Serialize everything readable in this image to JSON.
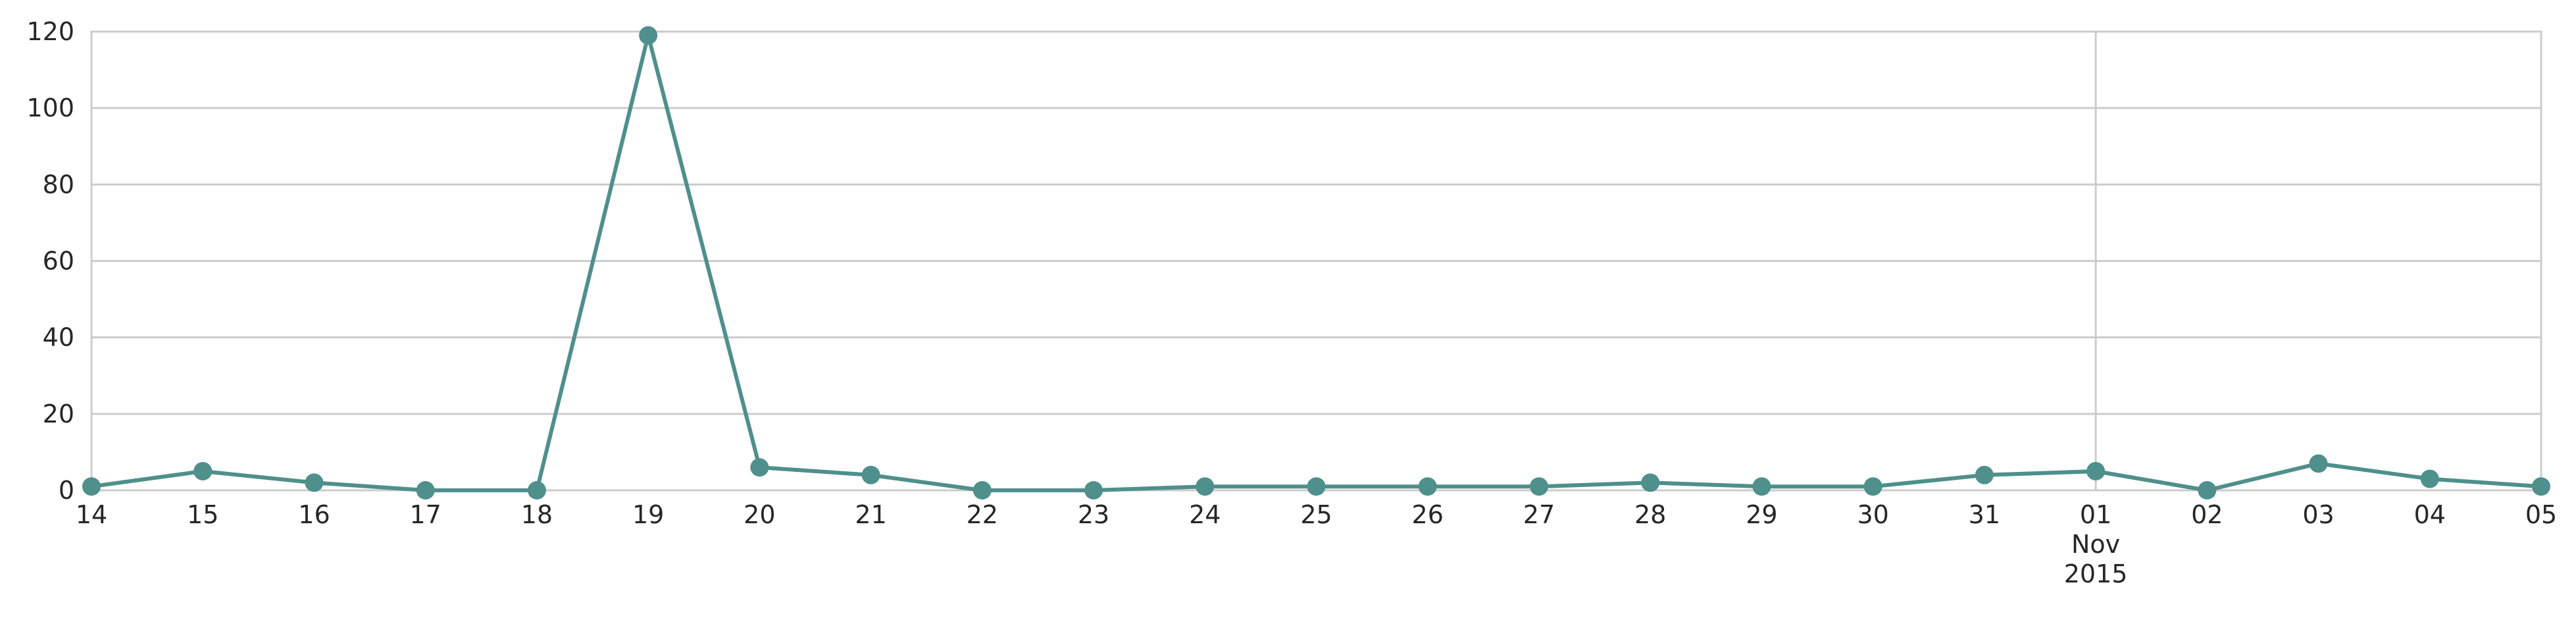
{
  "chart_data": {
    "type": "line",
    "title": "",
    "xlabel": "",
    "ylabel": "",
    "ylim": [
      0,
      120
    ],
    "yticks": [
      "0",
      "20",
      "40",
      "60",
      "80",
      "100",
      "120"
    ],
    "grid": true,
    "x_tick_labels": [
      {
        "day": "14"
      },
      {
        "day": "15"
      },
      {
        "day": "16"
      },
      {
        "day": "17"
      },
      {
        "day": "18"
      },
      {
        "day": "19"
      },
      {
        "day": "20"
      },
      {
        "day": "21"
      },
      {
        "day": "22"
      },
      {
        "day": "23"
      },
      {
        "day": "24"
      },
      {
        "day": "25"
      },
      {
        "day": "26"
      },
      {
        "day": "27"
      },
      {
        "day": "28"
      },
      {
        "day": "29"
      },
      {
        "day": "30"
      },
      {
        "day": "31"
      },
      {
        "day": "01",
        "month": "Nov",
        "year": "2015"
      },
      {
        "day": "02"
      },
      {
        "day": "03"
      },
      {
        "day": "04"
      },
      {
        "day": "05"
      }
    ],
    "series": [
      {
        "color": "#4f8f8c",
        "x": [
          "2015-10-14",
          "2015-10-15",
          "2015-10-16",
          "2015-10-17",
          "2015-10-18",
          "2015-10-19",
          "2015-10-20",
          "2015-10-21",
          "2015-10-22",
          "2015-10-23",
          "2015-10-24",
          "2015-10-25",
          "2015-10-26",
          "2015-10-27",
          "2015-10-28",
          "2015-10-29",
          "2015-10-30",
          "2015-10-31",
          "2015-11-01",
          "2015-11-02",
          "2015-11-03",
          "2015-11-04",
          "2015-11-05"
        ],
        "values": [
          1,
          5,
          2,
          0,
          0,
          119,
          6,
          4,
          0,
          0,
          1,
          1,
          1,
          1,
          2,
          1,
          1,
          4,
          5,
          0,
          7,
          3,
          1
        ]
      }
    ]
  }
}
